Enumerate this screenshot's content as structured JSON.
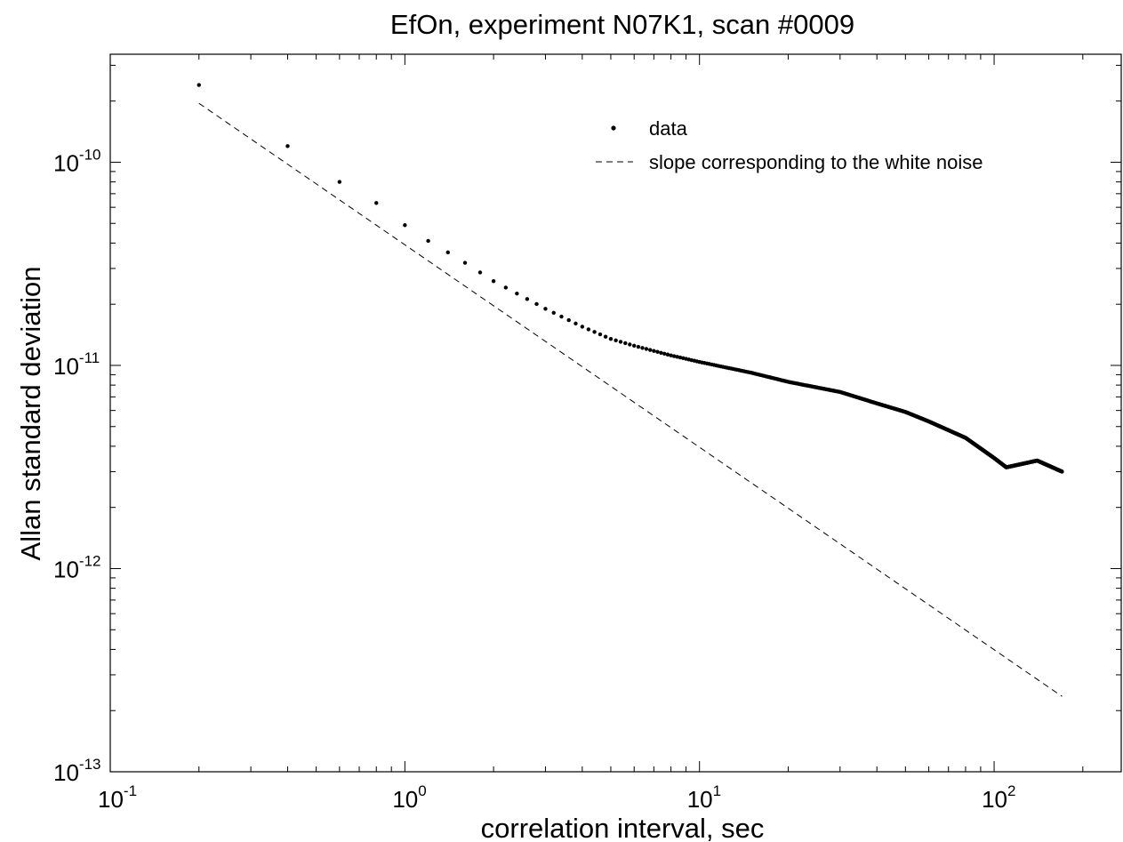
{
  "chart_data": {
    "type": "scatter",
    "title": "EfOn, experiment N07K1, scan #0009",
    "xlabel": "correlation interval, sec",
    "ylabel": "Allan standard deviation",
    "xscale": "log",
    "yscale": "log",
    "xlim": [
      0.1,
      270
    ],
    "ylim": [
      1e-13,
      3.4e-10
    ],
    "grid": false,
    "legend_placement": "top-right",
    "x_ticks": [
      {
        "base": "10",
        "exp": "-1",
        "value": 0.1
      },
      {
        "base": "10",
        "exp": "0",
        "value": 1
      },
      {
        "base": "10",
        "exp": "1",
        "value": 10
      },
      {
        "base": "10",
        "exp": "2",
        "value": 100
      }
    ],
    "y_ticks": [
      {
        "base": "10",
        "exp": "-10",
        "value": 1e-10
      },
      {
        "base": "10",
        "exp": "-11",
        "value": 1e-11
      },
      {
        "base": "10",
        "exp": "-12",
        "value": 1e-12
      },
      {
        "base": "10",
        "exp": "-13",
        "value": 1e-13
      }
    ],
    "series": [
      {
        "name": "data",
        "style": "points",
        "color": "#000000",
        "x_start": 0.2,
        "x_step": 0.2,
        "x_end": 170,
        "x": [
          0.2,
          0.4,
          0.6,
          0.8,
          1.0,
          1.2,
          1.4,
          1.6,
          2.0,
          3.0,
          4.0,
          5.0,
          6.0,
          8.0,
          10,
          15,
          20,
          30,
          40,
          50,
          60,
          80,
          100,
          110,
          140,
          170
        ],
        "y": [
          2.4e-10,
          1.2e-10,
          8e-11,
          6.3e-11,
          4.9e-11,
          4.1e-11,
          3.6e-11,
          3.2e-11,
          2.6e-11,
          1.9e-11,
          1.55e-11,
          1.35e-11,
          1.25e-11,
          1.12e-11,
          1.04e-11,
          9.2e-12,
          8.3e-12,
          7.4e-12,
          6.5e-12,
          5.9e-12,
          5.3e-12,
          4.4e-12,
          3.5e-12,
          3.15e-12,
          3.4e-12,
          3e-12
        ]
      },
      {
        "name": "slope corresponding to the white noise",
        "style": "dashed",
        "color": "#000000",
        "x": [
          0.2,
          170
        ],
        "y": [
          1.95e-10,
          2.35e-13
        ]
      }
    ]
  }
}
